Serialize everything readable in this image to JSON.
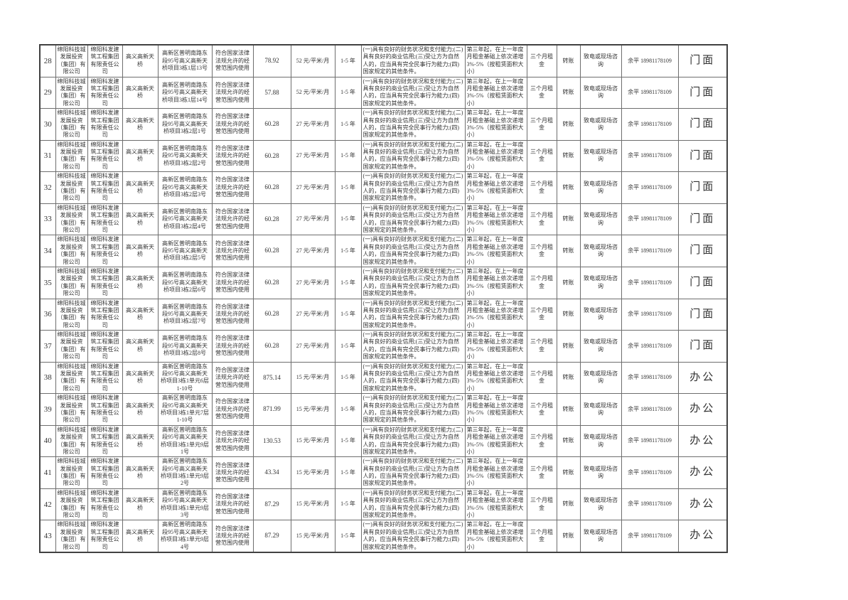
{
  "table": {
    "common": {
      "owner": "绵阳科技城发展投资（集团）有限公司",
      "landlord": "绵阳科发建筑工程集团有限责任公司",
      "location": "高义高新天桥",
      "usage": "符合国家法律法规允许的经营范围内使用",
      "term": "1-5 年",
      "qualification": "(一)具有良好的财务状况和支付能力;(二)具有良好的商业信用;(三)受让方为自然人的，应当具有完全民事行为能力;(四)国家规定的其他条件。",
      "increase": "第三年起，在上一年度月租金基础上依次递增3%-5%（按租赁面积大小）",
      "deposit": "三个月租金",
      "payment": "转账",
      "contact_method": "致电或现场咨询",
      "contact": "余平 18981178109"
    },
    "rows": [
      {
        "num": "28",
        "address": "高新区普明南路东段95号高义高新天桥项目3栋1层13号",
        "area": "78.92",
        "price": "52 元/平米/月",
        "type": "门面"
      },
      {
        "num": "29",
        "address": "高新区普明南路东段95号高义高新天桥项目3栋1层14号",
        "area": "57.88",
        "price": "52 元/平米/月",
        "type": "门面"
      },
      {
        "num": "30",
        "address": "高新区普明南路东段95号高义高新天桥项目3栋2层1号",
        "area": "60.28",
        "price": "27 元/平米/月",
        "type": "门面"
      },
      {
        "num": "31",
        "address": "高新区普明南路东段95号高义高新天桥项目3栋2层2号",
        "area": "60.28",
        "price": "27 元/平米/月",
        "type": "门面"
      },
      {
        "num": "32",
        "address": "高新区普明南路东段95号高义高新天桥项目3栋2层3号",
        "area": "60.28",
        "price": "27 元/平米/月",
        "type": "门面"
      },
      {
        "num": "33",
        "address": "高新区普明南路东段95号高义高新天桥项目3栋2层4号",
        "area": "60.28",
        "price": "27 元/平米/月",
        "type": "门面"
      },
      {
        "num": "34",
        "address": "高新区普明南路东段95号高义高新天桥项目3栋2层5号",
        "area": "60.28",
        "price": "27 元/平米/月",
        "type": "门面"
      },
      {
        "num": "35",
        "address": "高新区普明南路东段95号高义高新天桥项目3栋2层6号",
        "area": "60.28",
        "price": "27 元/平米/月",
        "type": "门面"
      },
      {
        "num": "36",
        "address": "高新区普明南路东段95号高义高新天桥项目3栋2层7号",
        "area": "60.28",
        "price": "27 元/平米/月",
        "type": "门面"
      },
      {
        "num": "37",
        "address": "高新区普明南路东段95号高义高新天桥项目3栋2层8号",
        "area": "60.28",
        "price": "27 元/平米/月",
        "type": "门面"
      },
      {
        "num": "38",
        "address": "高新区普明南路东段95号高义高新天桥项目3栋1单元6层1-10号",
        "area": "875.14",
        "price": "15 元/平米/月",
        "type": "办公"
      },
      {
        "num": "39",
        "address": "高新区普明南路东段95号高义高新天桥项目3栋1单元7层1-10号",
        "area": "871.99",
        "price": "15 元/平米/月",
        "type": "办公"
      },
      {
        "num": "40",
        "address": "高新区普明南路东段95号高义高新天桥项目3栋1单元9层1号",
        "area": "130.53",
        "price": "15 元/平米/月",
        "type": "办公"
      },
      {
        "num": "41",
        "address": "高新区普明南路东段95号高义高新天桥项目3栋1单元9层2号",
        "area": "43.34",
        "price": "15 元/平米/月",
        "type": "办公"
      },
      {
        "num": "42",
        "address": "高新区普明南路东段95号高义高新天桥项目3栋1单元9层3号",
        "area": "87.29",
        "price": "15 元/平米/月",
        "type": "办公"
      },
      {
        "num": "43",
        "address": "高新区普明南路东段95号高义高新天桥项目3栋1单元9层4号",
        "area": "87.29",
        "price": "15 元/平米/月",
        "type": "办公"
      }
    ]
  }
}
